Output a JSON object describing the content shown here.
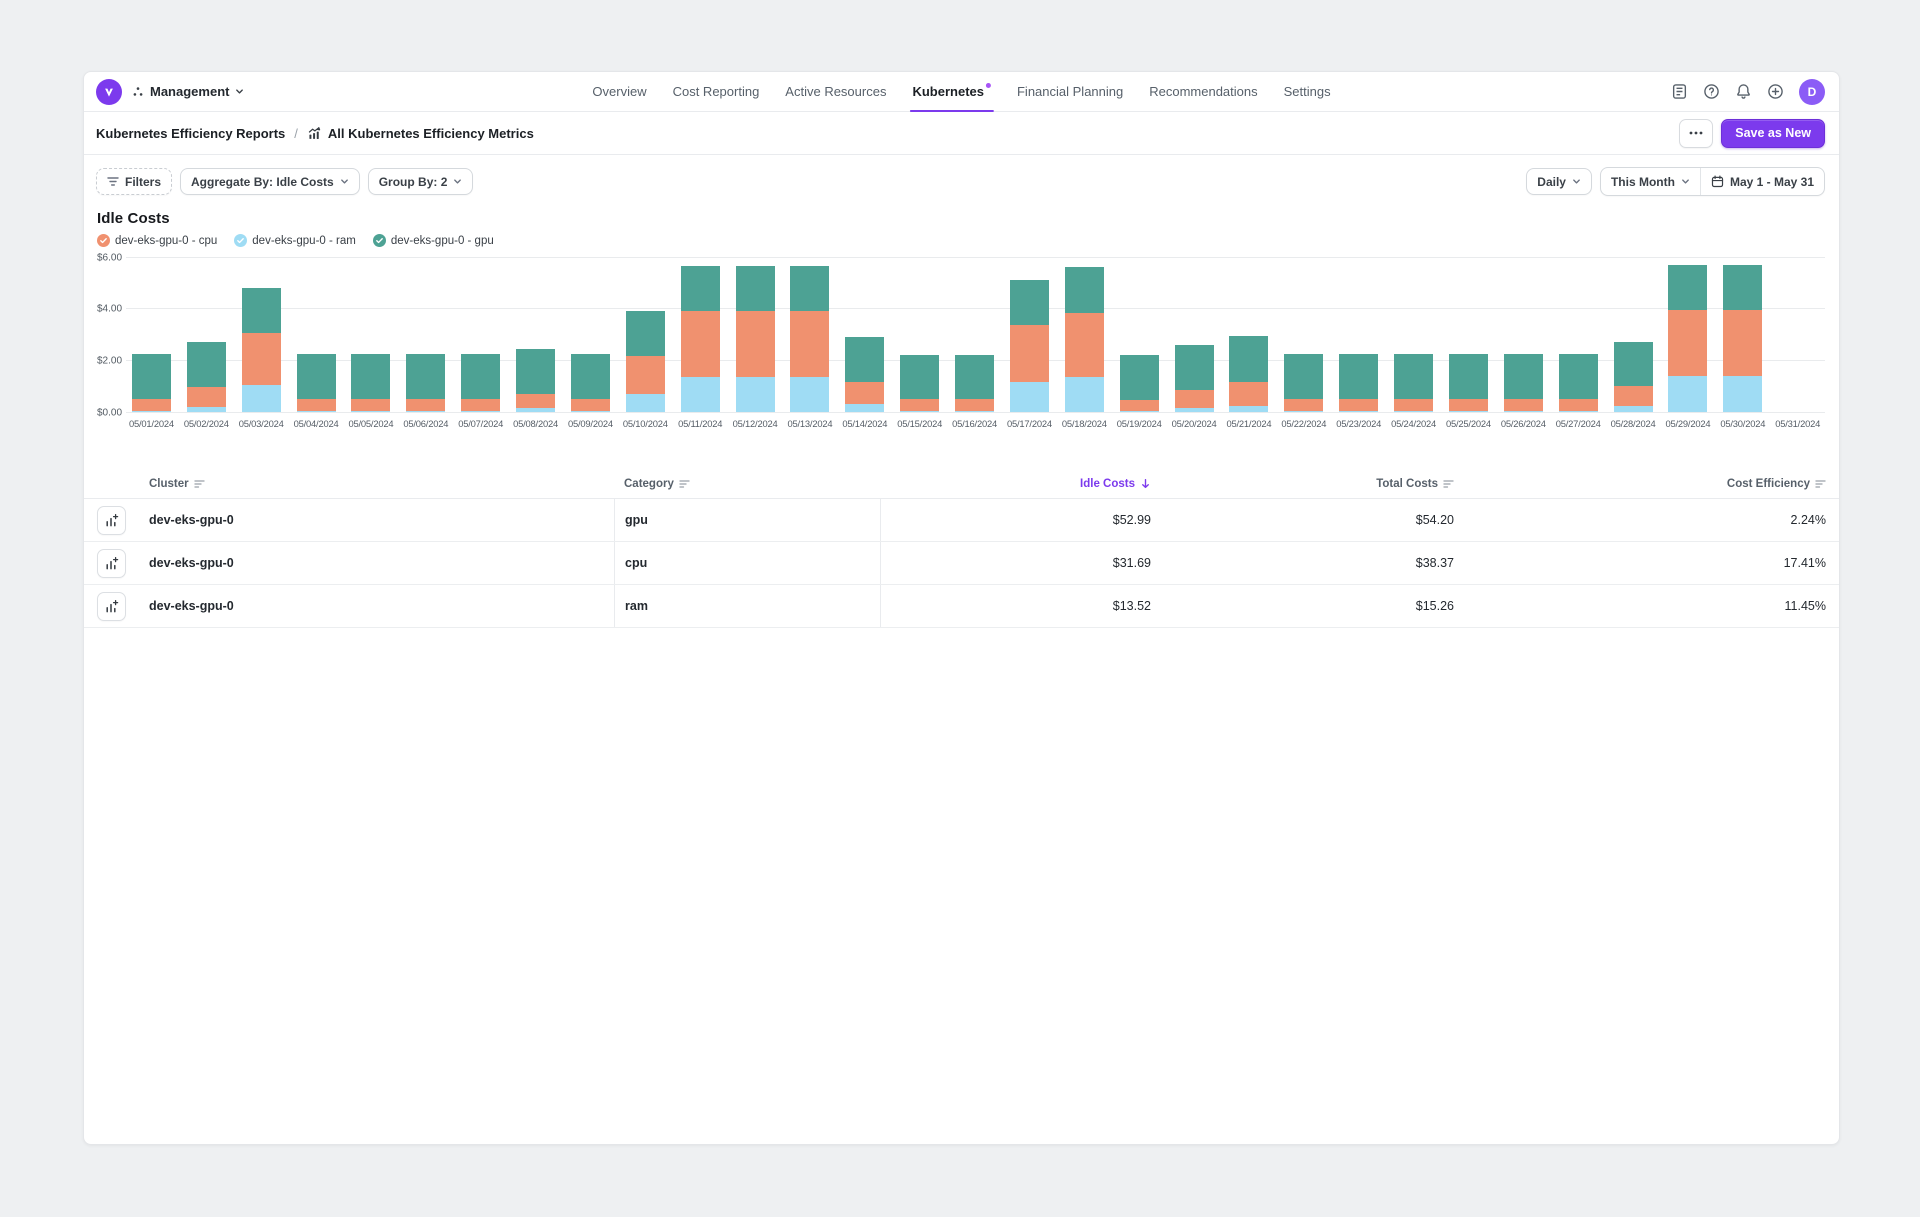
{
  "colors": {
    "accent": "#7c3aed",
    "avatar_bg": "#8b5cf6",
    "new_feature_dot": "#a855f7",
    "series_cpu": "#f0916f",
    "series_ram": "#9fdcf4",
    "series_gpu": "#4da294"
  },
  "topbar": {
    "workspace_label": "Management",
    "nav": [
      {
        "label": "Overview",
        "active": false
      },
      {
        "label": "Cost Reporting",
        "active": false
      },
      {
        "label": "Active Resources",
        "active": false
      },
      {
        "label": "Kubernetes",
        "active": true,
        "badge": true
      },
      {
        "label": "Financial Planning",
        "active": false
      },
      {
        "label": "Recommendations",
        "active": false
      },
      {
        "label": "Settings",
        "active": false
      }
    ],
    "avatar_initial": "D"
  },
  "breadcrumb": {
    "parent": "Kubernetes Efficiency Reports",
    "separator": "/",
    "current": "All Kubernetes Efficiency Metrics"
  },
  "header_actions": {
    "save_label": "Save as New"
  },
  "toolbar": {
    "filters_label": "Filters",
    "aggregate_label": "Aggregate By: Idle Costs",
    "group_label": "Group By: 2",
    "granularity_label": "Daily",
    "period_label": "This Month",
    "date_range_label": "May 1 - May 31"
  },
  "chart_data": {
    "type": "bar",
    "stacked": true,
    "title": "Idle Costs",
    "legend_position": "top-left",
    "grid": true,
    "ylim": [
      0,
      6
    ],
    "yticks": [
      {
        "value": 0,
        "label": "$0.00"
      },
      {
        "value": 2,
        "label": "$2.00"
      },
      {
        "value": 4,
        "label": "$4.00"
      },
      {
        "value": 6,
        "label": "$6.00"
      }
    ],
    "legend": [
      {
        "label": "dev-eks-gpu-0 - cpu",
        "color": "#f0916f"
      },
      {
        "label": "dev-eks-gpu-0 - ram",
        "color": "#9fdcf4"
      },
      {
        "label": "dev-eks-gpu-0 - gpu",
        "color": "#4da294"
      }
    ],
    "categories": [
      "05/01/2024",
      "05/02/2024",
      "05/03/2024",
      "05/04/2024",
      "05/05/2024",
      "05/06/2024",
      "05/07/2024",
      "05/08/2024",
      "05/09/2024",
      "05/10/2024",
      "05/11/2024",
      "05/12/2024",
      "05/13/2024",
      "05/14/2024",
      "05/15/2024",
      "05/16/2024",
      "05/17/2024",
      "05/18/2024",
      "05/19/2024",
      "05/20/2024",
      "05/21/2024",
      "05/22/2024",
      "05/23/2024",
      "05/24/2024",
      "05/25/2024",
      "05/26/2024",
      "05/27/2024",
      "05/28/2024",
      "05/29/2024",
      "05/30/2024",
      "05/31/2024"
    ],
    "series": [
      {
        "name": "dev-eks-gpu-0 - ram",
        "color": "#9fdcf4",
        "values": [
          0.05,
          0.2,
          1.05,
          0.05,
          0.05,
          0.05,
          0.05,
          0.15,
          0.05,
          0.7,
          1.35,
          1.35,
          1.35,
          0.3,
          0.05,
          0.05,
          1.15,
          1.35,
          0.05,
          0.15,
          0.25,
          0.05,
          0.05,
          0.05,
          0.05,
          0.05,
          0.05,
          0.25,
          1.4,
          1.4,
          0
        ]
      },
      {
        "name": "dev-eks-gpu-0 - cpu",
        "color": "#f0916f",
        "values": [
          0.45,
          0.75,
          2.0,
          0.45,
          0.45,
          0.45,
          0.45,
          0.55,
          0.45,
          1.45,
          2.55,
          2.55,
          2.55,
          0.85,
          0.45,
          0.45,
          2.2,
          2.5,
          0.4,
          0.7,
          0.9,
          0.45,
          0.45,
          0.45,
          0.45,
          0.45,
          0.45,
          0.75,
          2.55,
          2.55,
          0
        ]
      },
      {
        "name": "dev-eks-gpu-0 - gpu",
        "color": "#4da294",
        "values": [
          1.75,
          1.75,
          1.75,
          1.75,
          1.75,
          1.75,
          1.75,
          1.75,
          1.75,
          1.75,
          1.75,
          1.75,
          1.75,
          1.75,
          1.7,
          1.7,
          1.75,
          1.75,
          1.75,
          1.75,
          1.8,
          1.75,
          1.75,
          1.75,
          1.75,
          1.75,
          1.75,
          1.7,
          1.75,
          1.75,
          0
        ]
      }
    ]
  },
  "table": {
    "columns": [
      {
        "label": "Cluster",
        "align": "left",
        "sortable": true,
        "sorted": null
      },
      {
        "label": "Category",
        "align": "left",
        "sortable": true,
        "sorted": null
      },
      {
        "label": "Idle Costs",
        "align": "right",
        "sortable": true,
        "sorted": "desc"
      },
      {
        "label": "Total Costs",
        "align": "right",
        "sortable": true,
        "sorted": null
      },
      {
        "label": "Cost Efficiency",
        "align": "right",
        "sortable": true,
        "sorted": null
      }
    ],
    "rows": [
      {
        "cluster": "dev-eks-gpu-0",
        "category": "gpu",
        "idle_costs": "$52.99",
        "total_costs": "$54.20",
        "cost_efficiency": "2.24%"
      },
      {
        "cluster": "dev-eks-gpu-0",
        "category": "cpu",
        "idle_costs": "$31.69",
        "total_costs": "$38.37",
        "cost_efficiency": "17.41%"
      },
      {
        "cluster": "dev-eks-gpu-0",
        "category": "ram",
        "idle_costs": "$13.52",
        "total_costs": "$15.26",
        "cost_efficiency": "11.45%"
      }
    ]
  }
}
